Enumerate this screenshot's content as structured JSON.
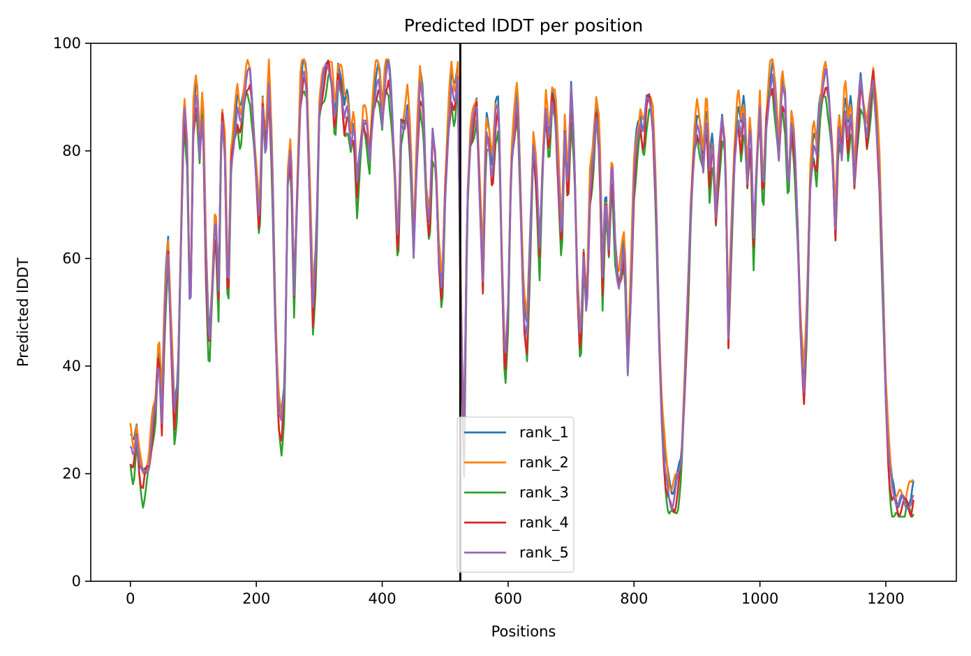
{
  "chart_data": {
    "type": "line",
    "title": "Predicted lDDT per position",
    "xlabel": "Positions",
    "ylabel": "Predicted lDDT",
    "xlim": [
      -63,
      1312
    ],
    "ylim": [
      0,
      100
    ],
    "xticks": [
      0,
      200,
      400,
      600,
      800,
      1000,
      1200
    ],
    "yticks": [
      0,
      20,
      40,
      60,
      80,
      100
    ],
    "grid": false,
    "legend_position": "lower center",
    "vline": {
      "x": 524,
      "color": "#000000"
    },
    "series": [
      {
        "name": "rank_1",
        "color": "#1f77b4",
        "offset": 1.5
      },
      {
        "name": "rank_2",
        "color": "#ff7f0e",
        "offset": 2.5
      },
      {
        "name": "rank_3",
        "color": "#2ca02c",
        "offset": -2.5
      },
      {
        "name": "rank_4",
        "color": "#d62728",
        "offset": -1.0
      },
      {
        "name": "rank_5",
        "color": "#9467bd",
        "offset": 0.0
      }
    ],
    "base_profile": [
      [
        0,
        25
      ],
      [
        5,
        22
      ],
      [
        10,
        28
      ],
      [
        15,
        21
      ],
      [
        20,
        18
      ],
      [
        25,
        20
      ],
      [
        30,
        22
      ],
      [
        35,
        28
      ],
      [
        40,
        32
      ],
      [
        45,
        44
      ],
      [
        50,
        30
      ],
      [
        55,
        52
      ],
      [
        60,
        62
      ],
      [
        65,
        45
      ],
      [
        70,
        30
      ],
      [
        75,
        35
      ],
      [
        80,
        62
      ],
      [
        85,
        88
      ],
      [
        90,
        80
      ],
      [
        95,
        47
      ],
      [
        100,
        85
      ],
      [
        105,
        91
      ],
      [
        110,
        80
      ],
      [
        115,
        90
      ],
      [
        120,
        60
      ],
      [
        125,
        42
      ],
      [
        130,
        55
      ],
      [
        135,
        68
      ],
      [
        140,
        52
      ],
      [
        145,
        88
      ],
      [
        150,
        80
      ],
      [
        155,
        50
      ],
      [
        160,
        78
      ],
      [
        165,
        84
      ],
      [
        170,
        88
      ],
      [
        175,
        84
      ],
      [
        180,
        90
      ],
      [
        185,
        94
      ],
      [
        190,
        93
      ],
      [
        195,
        85
      ],
      [
        200,
        75
      ],
      [
        205,
        65
      ],
      [
        210,
        88
      ],
      [
        215,
        80
      ],
      [
        220,
        93
      ],
      [
        225,
        78
      ],
      [
        230,
        50
      ],
      [
        235,
        32
      ],
      [
        240,
        28
      ],
      [
        245,
        35
      ],
      [
        250,
        75
      ],
      [
        255,
        80
      ],
      [
        260,
        52
      ],
      [
        265,
        72
      ],
      [
        270,
        90
      ],
      [
        275,
        95
      ],
      [
        280,
        92
      ],
      [
        285,
        72
      ],
      [
        290,
        50
      ],
      [
        295,
        60
      ],
      [
        300,
        88
      ],
      [
        305,
        92
      ],
      [
        310,
        94
      ],
      [
        315,
        96
      ],
      [
        320,
        93
      ],
      [
        325,
        84
      ],
      [
        330,
        94
      ],
      [
        335,
        93
      ],
      [
        340,
        86
      ],
      [
        345,
        88
      ],
      [
        350,
        82
      ],
      [
        355,
        85
      ],
      [
        360,
        72
      ],
      [
        365,
        80
      ],
      [
        370,
        86
      ],
      [
        375,
        84
      ],
      [
        380,
        78
      ],
      [
        385,
        88
      ],
      [
        390,
        92
      ],
      [
        395,
        93
      ],
      [
        400,
        86
      ],
      [
        405,
        94
      ],
      [
        410,
        95
      ],
      [
        415,
        88
      ],
      [
        420,
        76
      ],
      [
        425,
        60
      ],
      [
        430,
        84
      ],
      [
        435,
        85
      ],
      [
        440,
        88
      ],
      [
        445,
        80
      ],
      [
        450,
        62
      ],
      [
        455,
        80
      ],
      [
        460,
        92
      ],
      [
        465,
        88
      ],
      [
        470,
        72
      ],
      [
        475,
        65
      ],
      [
        480,
        82
      ],
      [
        485,
        78
      ],
      [
        490,
        60
      ],
      [
        495,
        52
      ],
      [
        500,
        72
      ],
      [
        505,
        85
      ],
      [
        510,
        92
      ],
      [
        515,
        88
      ],
      [
        520,
        95
      ],
      [
        525,
        50
      ],
      [
        530,
        24
      ],
      [
        535,
        70
      ],
      [
        540,
        82
      ],
      [
        545,
        85
      ],
      [
        550,
        88
      ],
      [
        555,
        72
      ],
      [
        560,
        56
      ],
      [
        565,
        84
      ],
      [
        570,
        82
      ],
      [
        575,
        75
      ],
      [
        580,
        86
      ],
      [
        585,
        88
      ],
      [
        590,
        60
      ],
      [
        595,
        38
      ],
      [
        600,
        50
      ],
      [
        605,
        78
      ],
      [
        610,
        84
      ],
      [
        615,
        90
      ],
      [
        620,
        70
      ],
      [
        625,
        50
      ],
      [
        630,
        45
      ],
      [
        635,
        62
      ],
      [
        640,
        82
      ],
      [
        645,
        75
      ],
      [
        650,
        60
      ],
      [
        655,
        78
      ],
      [
        660,
        88
      ],
      [
        665,
        80
      ],
      [
        670,
        90
      ],
      [
        675,
        88
      ],
      [
        680,
        75
      ],
      [
        685,
        62
      ],
      [
        690,
        85
      ],
      [
        695,
        72
      ],
      [
        700,
        90
      ],
      [
        705,
        80
      ],
      [
        710,
        55
      ],
      [
        715,
        42
      ],
      [
        720,
        60
      ],
      [
        725,
        50
      ],
      [
        730,
        72
      ],
      [
        735,
        78
      ],
      [
        740,
        88
      ],
      [
        745,
        82
      ],
      [
        750,
        55
      ],
      [
        755,
        72
      ],
      [
        760,
        62
      ],
      [
        765,
        78
      ],
      [
        770,
        62
      ],
      [
        775,
        55
      ],
      [
        780,
        58
      ],
      [
        785,
        62
      ],
      [
        790,
        40
      ],
      [
        795,
        55
      ],
      [
        800,
        75
      ],
      [
        805,
        82
      ],
      [
        810,
        86
      ],
      [
        815,
        82
      ],
      [
        820,
        88
      ],
      [
        825,
        90
      ],
      [
        830,
        85
      ],
      [
        835,
        70
      ],
      [
        840,
        45
      ],
      [
        845,
        28
      ],
      [
        850,
        20
      ],
      [
        855,
        16
      ],
      [
        860,
        15
      ],
      [
        865,
        16
      ],
      [
        870,
        18
      ],
      [
        875,
        22
      ],
      [
        880,
        35
      ],
      [
        885,
        50
      ],
      [
        890,
        68
      ],
      [
        895,
        80
      ],
      [
        900,
        85
      ],
      [
        905,
        82
      ],
      [
        910,
        78
      ],
      [
        915,
        88
      ],
      [
        920,
        75
      ],
      [
        925,
        82
      ],
      [
        930,
        68
      ],
      [
        935,
        78
      ],
      [
        940,
        85
      ],
      [
        945,
        80
      ],
      [
        950,
        45
      ],
      [
        955,
        65
      ],
      [
        960,
        80
      ],
      [
        965,
        88
      ],
      [
        970,
        82
      ],
      [
        975,
        88
      ],
      [
        980,
        75
      ],
      [
        985,
        85
      ],
      [
        990,
        62
      ],
      [
        995,
        78
      ],
      [
        1000,
        88
      ],
      [
        1005,
        70
      ],
      [
        1010,
        85
      ],
      [
        1015,
        92
      ],
      [
        1020,
        94
      ],
      [
        1025,
        88
      ],
      [
        1030,
        80
      ],
      [
        1035,
        92
      ],
      [
        1040,
        88
      ],
      [
        1045,
        72
      ],
      [
        1050,
        85
      ],
      [
        1055,
        80
      ],
      [
        1060,
        65
      ],
      [
        1065,
        45
      ],
      [
        1070,
        35
      ],
      [
        1075,
        50
      ],
      [
        1080,
        75
      ],
      [
        1085,
        82
      ],
      [
        1090,
        78
      ],
      [
        1095,
        88
      ],
      [
        1100,
        92
      ],
      [
        1105,
        94
      ],
      [
        1110,
        88
      ],
      [
        1115,
        80
      ],
      [
        1120,
        65
      ],
      [
        1125,
        85
      ],
      [
        1130,
        80
      ],
      [
        1135,
        90
      ],
      [
        1140,
        82
      ],
      [
        1145,
        88
      ],
      [
        1150,
        75
      ],
      [
        1155,
        85
      ],
      [
        1160,
        92
      ],
      [
        1165,
        88
      ],
      [
        1170,
        82
      ],
      [
        1175,
        88
      ],
      [
        1180,
        94
      ],
      [
        1185,
        86
      ],
      [
        1190,
        75
      ],
      [
        1195,
        55
      ],
      [
        1200,
        35
      ],
      [
        1205,
        22
      ],
      [
        1210,
        16
      ],
      [
        1215,
        15
      ],
      [
        1220,
        14
      ],
      [
        1225,
        14
      ],
      [
        1230,
        14
      ],
      [
        1235,
        15
      ],
      [
        1240,
        14
      ],
      [
        1245,
        16
      ]
    ]
  }
}
